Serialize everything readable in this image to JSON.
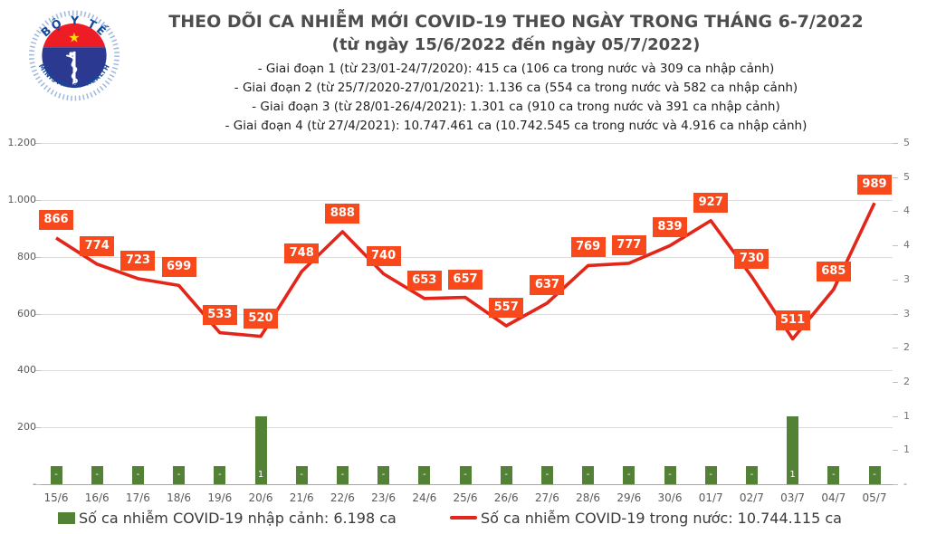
{
  "logo": {
    "top_text": "BỘ Y TẾ",
    "bottom_text": "MINISTRY OF HEALTH",
    "colors": {
      "ring_blue": "#2b3990",
      "flag_red": "#ee1c25",
      "star_yellow": "#ffde00",
      "text_blue": "#16489c"
    }
  },
  "header": {
    "title": "THEO DÕI CA NHIỄM MỚI COVID-19 THEO NGÀY TRONG THÁNG 6-7/2022",
    "subtitle": "(từ ngày 15/6/2022 đến ngày 05/7/2022)",
    "phases": [
      "- Giai đoạn 1 (từ 23/01-24/7/2020): 415 ca (106 ca trong nước và 309 ca nhập cảnh)",
      "- Giai đoạn 2 (từ 25/7/2020-27/01/2021): 1.136 ca (554 ca trong nước và 582 ca nhập cảnh)",
      "- Giai đoạn 3 (từ 28/01-26/4/2021): 1.301 ca (910 ca trong nước và 391 ca nhập cảnh)",
      "- Giai đoạn 4 (từ 27/4/2021): 10.747.461 ca (10.742.545 ca trong nước và 4.916 ca nhập cảnh)"
    ]
  },
  "chart_data": {
    "type": "combo-line-bar",
    "categories": [
      "15/6",
      "16/6",
      "17/6",
      "18/6",
      "19/6",
      "20/6",
      "21/6",
      "22/6",
      "23/6",
      "24/6",
      "25/6",
      "26/6",
      "27/6",
      "28/6",
      "29/6",
      "30/6",
      "01/7",
      "02/7",
      "03/7",
      "04/7",
      "05/7"
    ],
    "series": [
      {
        "name": "Số ca nhiễm COVID-19 nhập cảnh",
        "type": "bar",
        "axis": "right",
        "color": "#538135",
        "values": [
          0,
          0,
          0,
          0,
          0,
          1,
          0,
          0,
          0,
          0,
          0,
          0,
          0,
          0,
          0,
          0,
          0,
          0,
          1,
          0,
          0
        ],
        "value_labels": [
          "-",
          "-",
          "-",
          "-",
          "-",
          "1",
          "-",
          "-",
          "-",
          "-",
          "-",
          "-",
          "-",
          "-",
          "-",
          "-",
          "-",
          "-",
          "1",
          "-",
          "-"
        ]
      },
      {
        "name": "Số ca nhiễm COVID-19 trong nước",
        "type": "line",
        "axis": "left",
        "color": "#e3261a",
        "label_bg": "#f8491d",
        "values": [
          866,
          774,
          723,
          699,
          533,
          520,
          748,
          888,
          740,
          653,
          657,
          557,
          637,
          769,
          777,
          839,
          927,
          730,
          511,
          685,
          989
        ]
      }
    ],
    "left_axis": {
      "max": 1200,
      "min": 0,
      "tick_labels": [
        "1.200",
        "1.000",
        "800",
        "600",
        "400",
        "200",
        "-"
      ]
    },
    "right_axis": {
      "max": 5,
      "min": 0,
      "tick_labels": [
        "5",
        "5",
        "4",
        "4",
        "3",
        "3",
        "2",
        "2",
        "1",
        "1",
        "-"
      ]
    },
    "grid": true,
    "legend_position": "bottom",
    "title": "THEO DÕI CA NHIỄM MỚI COVID-19 THEO NGÀY TRONG THÁNG 6-7/2022"
  },
  "legend": {
    "bar_label": "Số ca nhiễm COVID-19 nhập cảnh: 6.198 ca",
    "line_label": "Số ca nhiễm COVID-19 trong nước: 10.744.115 ca"
  }
}
